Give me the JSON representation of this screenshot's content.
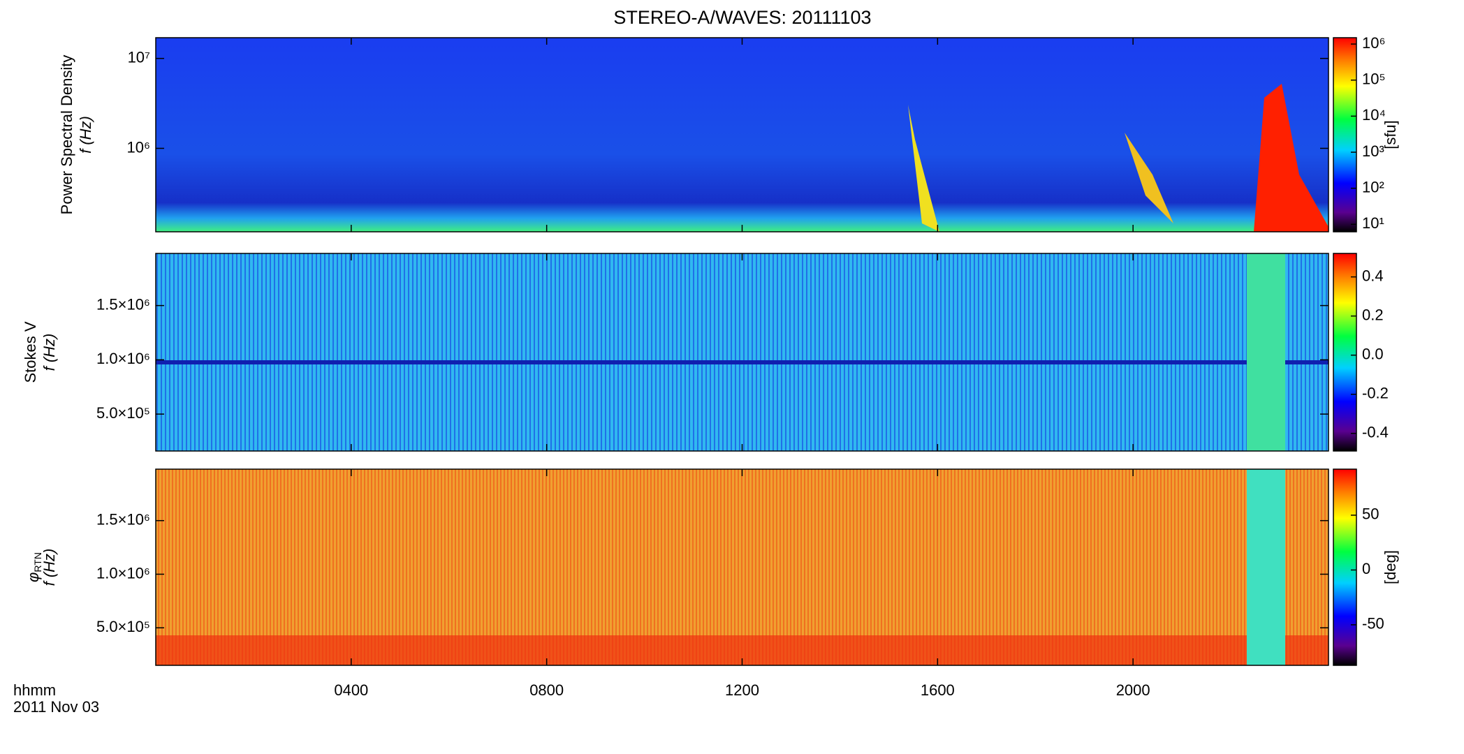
{
  "chart_data": [
    {
      "type": "spectrogram",
      "title": "STEREO-A/WAVES: 20111103",
      "ylabel": "Power Spectral Density",
      "ylabel2": "f (Hz)",
      "log": true,
      "ylim": [
        118000,
        17000000
      ],
      "yticks": [
        {
          "value": 1000000,
          "label": "10⁶"
        },
        {
          "value": 10000000,
          "label": "10⁷"
        }
      ],
      "colorbar": {
        "label": "[sfu]",
        "log": true,
        "lim": [
          6.2,
          1500000
        ],
        "ticks": [
          {
            "value": 10,
            "label": "10¹"
          },
          {
            "value": 100,
            "label": "10²"
          },
          {
            "value": 1000,
            "label": "10³"
          },
          {
            "value": 10000,
            "label": "10⁴"
          },
          {
            "value": 100000,
            "label": "10⁵"
          },
          {
            "value": 1000000,
            "label": "10⁶"
          }
        ]
      }
    },
    {
      "type": "spectrogram",
      "ylabel": "Stokes V",
      "ylabel2": "f (Hz)",
      "log": false,
      "ylim": [
        160000,
        1980000
      ],
      "yticks": [
        {
          "value": 500000,
          "label": "5.0×10⁵"
        },
        {
          "value": 1000000,
          "label": "1.0×10⁶"
        },
        {
          "value": 1500000,
          "label": "1.5×10⁶"
        }
      ],
      "colorbar": {
        "log": false,
        "lim": [
          -0.49,
          0.52
        ],
        "ticks": [
          -0.4,
          -0.2,
          {
            "value": 0,
            "label": "0.0"
          },
          0.2,
          0.4
        ]
      }
    },
    {
      "type": "spectrogram",
      "ylabel": "φ",
      "ylabel_sub": "RTN",
      "ylabel2": "f (Hz)",
      "log": false,
      "ylim": [
        150000,
        1980000
      ],
      "yticks": [
        {
          "value": 500000,
          "label": "5.0×10⁵"
        },
        {
          "value": 1000000,
          "label": "1.0×10⁶"
        },
        {
          "value": 1500000,
          "label": "1.5×10⁶"
        }
      ],
      "colorbar": {
        "label": "[deg]",
        "log": false,
        "lim": [
          -87,
          92
        ],
        "ticks": [
          -50,
          0,
          50
        ]
      },
      "xlabel": "hhmm",
      "xsublabel": "2011 Nov 03",
      "xlim": [
        0,
        24
      ],
      "xticks": [
        {
          "value": 4,
          "label": "0400"
        },
        {
          "value": 8,
          "label": "0800"
        },
        {
          "value": 12,
          "label": "1200"
        },
        {
          "value": 16,
          "label": "1600"
        },
        {
          "value": 20,
          "label": "2000"
        }
      ]
    }
  ]
}
